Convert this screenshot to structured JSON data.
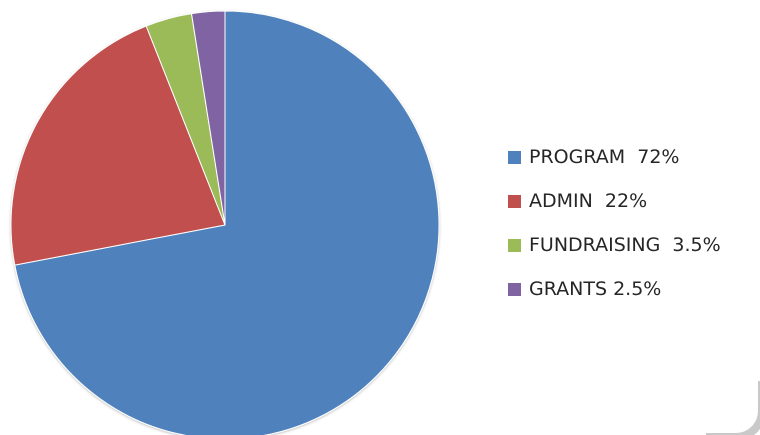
{
  "chart_data": {
    "type": "pie",
    "title": "",
    "start_angle_deg": 0,
    "direction": "clockwise",
    "slices": [
      {
        "category": "PROGRAM",
        "value": 72,
        "legend_label": "PROGRAM  72%",
        "color": "#4f81bd"
      },
      {
        "category": "ADMIN",
        "value": 22,
        "legend_label": "ADMIN  22%",
        "color": "#c0504d"
      },
      {
        "category": "FUNDRAISING",
        "value": 3.5,
        "legend_label": "FUNDRAISING  3.5%",
        "color": "#9bbb59"
      },
      {
        "category": "GRANTS",
        "value": 2.5,
        "legend_label": "GRANTS 2.5%",
        "color": "#8064a2"
      }
    ],
    "legend_position": "right",
    "grid": false
  }
}
